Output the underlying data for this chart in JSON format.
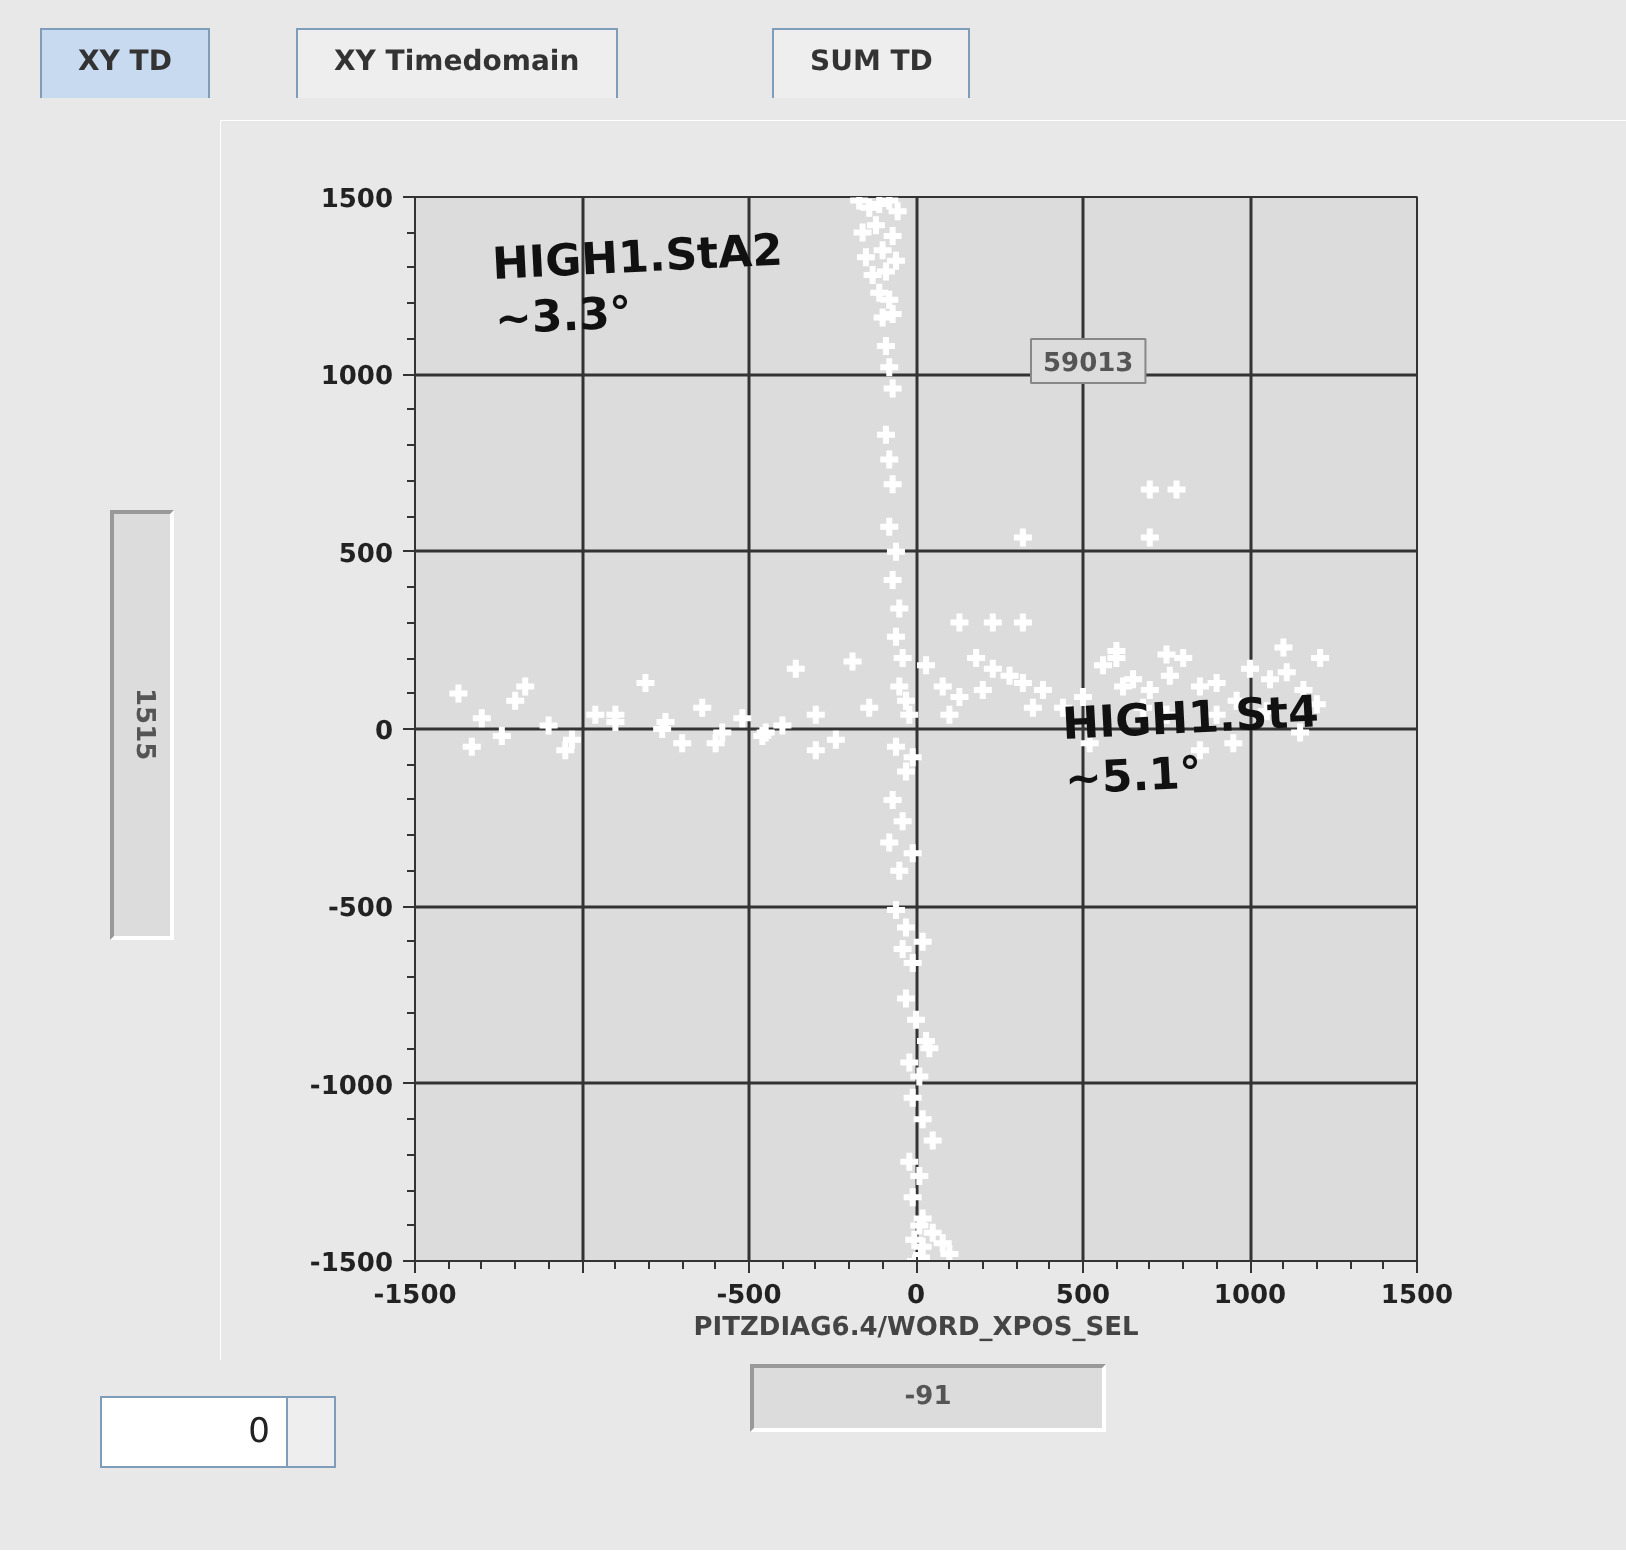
{
  "chart_data": {
    "type": "scatter",
    "xlabel": "PITZDIAG6.4/WORD_XPOS_SEL",
    "xlim": [
      -1500,
      1500
    ],
    "ylim": [
      -1500,
      1500
    ],
    "xticks": [
      -1500,
      {
        "value": -1000,
        "label": null
      },
      -500,
      0,
      500,
      1000,
      1500
    ],
    "yticks": [
      -1500,
      -1000,
      -500,
      0,
      500,
      1000,
      1500
    ],
    "grid": true,
    "marker": "cross",
    "annotations": [
      "XY TD",
      "XY Timedomain",
      "SUM TD",
      "59013",
      "1515",
      "-91",
      "0",
      "HIGH1.StA2\n~3.3°",
      "HIGH1.St4\n~5.1°"
    ],
    "series": [
      {
        "color": "#ffffff",
        "x": [
          -170,
          -140,
          -110,
          -80,
          -55,
          -160,
          -120,
          -70,
          -150,
          -100,
          -60,
          -130,
          -90,
          -110,
          -80,
          -100,
          -70,
          -90,
          -80,
          -70,
          -90,
          -80,
          -70,
          -80,
          -60,
          -70,
          -50,
          -60,
          -40,
          -50,
          -30,
          -20,
          -60,
          -30,
          -10,
          -70,
          -40,
          -80,
          -50,
          -10,
          -60,
          -30,
          -40,
          -10,
          20,
          -30,
          0,
          30,
          -20,
          10,
          40,
          -10,
          20,
          50,
          -20,
          10,
          -10,
          20,
          -5,
          15,
          0,
          20,
          10,
          50,
          80,
          100,
          -1370,
          -1300,
          -1240,
          -1170,
          -1100,
          -1030,
          -960,
          -900,
          -810,
          -760,
          -700,
          -640,
          -580,
          -520,
          -460,
          -400,
          -360,
          -300,
          -240,
          -190,
          -140,
          -1330,
          -1200,
          -1050,
          -900,
          -750,
          -600,
          -450,
          -300,
          30,
          80,
          130,
          180,
          230,
          280,
          320,
          380,
          440,
          500,
          560,
          600,
          650,
          700,
          760,
          800,
          850,
          900,
          960,
          1000,
          1060,
          1110,
          1160,
          1210,
          100,
          200,
          350,
          520,
          620,
          680,
          750,
          850,
          950,
          1050,
          1150,
          1200,
          600,
          750,
          900,
          1100,
          130,
          230,
          320,
          320,
          700,
          700,
          780
        ],
        "values": [
          1490,
          1470,
          1480,
          1490,
          1460,
          1400,
          1420,
          1390,
          1330,
          1350,
          1320,
          1280,
          1290,
          1230,
          1210,
          1160,
          1170,
          1080,
          1020,
          960,
          830,
          760,
          690,
          570,
          500,
          420,
          340,
          260,
          200,
          120,
          80,
          40,
          -50,
          -120,
          -80,
          -200,
          -260,
          -320,
          -400,
          -350,
          -510,
          -560,
          -620,
          -660,
          -600,
          -760,
          -820,
          -880,
          -940,
          -980,
          -900,
          -1040,
          -1100,
          -1160,
          -1220,
          -1260,
          -1320,
          -1380,
          -1440,
          -1490,
          -1500,
          -1460,
          -1400,
          -1420,
          -1450,
          -1480,
          100,
          30,
          -20,
          120,
          10,
          -30,
          40,
          20,
          130,
          0,
          -40,
          60,
          -10,
          30,
          -20,
          10,
          170,
          40,
          -30,
          190,
          60,
          -50,
          80,
          -60,
          40,
          20,
          -40,
          -10,
          -60,
          180,
          120,
          90,
          200,
          170,
          150,
          130,
          110,
          60,
          90,
          180,
          200,
          140,
          110,
          150,
          200,
          120,
          130,
          80,
          170,
          140,
          160,
          110,
          200,
          40,
          110,
          60,
          -40,
          120,
          60,
          40,
          -60,
          -40,
          50,
          -10,
          70,
          220,
          210,
          40,
          230,
          300,
          300,
          300,
          540,
          540,
          675,
          675
        ]
      }
    ]
  }
}
